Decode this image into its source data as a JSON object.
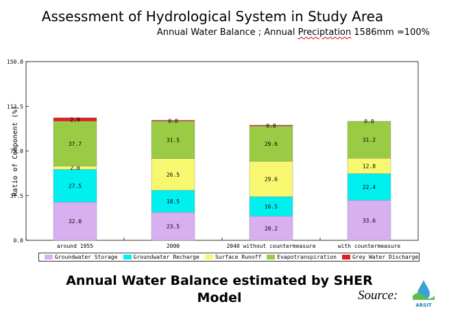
{
  "header": {
    "title": "Assessment of Hydrological System in Study Area",
    "subtitle_prefix": "Annual Water Balance ; Annual ",
    "subtitle_underlined": "Preciptation",
    "subtitle_suffix": " 1586mm =100%"
  },
  "chart_data": {
    "type": "bar",
    "stacked": true,
    "ylabel": "Ratio of Component (%)",
    "xlabel": "",
    "ylim": [
      0,
      150
    ],
    "yticks": [
      "0.0",
      "37.5",
      "75.0",
      "112.5",
      "150.0"
    ],
    "ytick_values": [
      0,
      37.5,
      75,
      112.5,
      150
    ],
    "categories": [
      "around 1955",
      "2000",
      "2040 without countermeasure",
      "with countermeasure"
    ],
    "series": [
      {
        "name": "Groundwater Storage",
        "color": "#d8b0f0",
        "values": [
          32.0,
          23.5,
          20.2,
          33.6
        ],
        "labels": [
          "32.0",
          "23.5",
          "20.2",
          "33.6"
        ]
      },
      {
        "name": "Groundwater Recharge",
        "color": "#00f0f0",
        "values": [
          27.5,
          18.5,
          16.5,
          22.4
        ],
        "labels": [
          "27.5",
          "18.5",
          "16.5",
          "22.4"
        ]
      },
      {
        "name": "Surface Runoff",
        "color": "#f8f870",
        "values": [
          2.8,
          26.5,
          29.6,
          12.8
        ],
        "labels": [
          "2.8",
          "26.5",
          "29.6",
          "12.8"
        ]
      },
      {
        "name": "Evapotranspiration",
        "color": "#99cc44",
        "values": [
          37.7,
          31.5,
          29.6,
          31.2
        ],
        "labels": [
          "37.7",
          "31.5",
          "29.6",
          "31.2"
        ]
      },
      {
        "name": "Grey Water Discharge",
        "color": "#e02020",
        "values": [
          2.9,
          0.8,
          0.8,
          0.0
        ],
        "labels": [
          "2.9",
          "0.8",
          "0.8",
          "0.0"
        ]
      }
    ],
    "legend_position": "bottom"
  },
  "caption": {
    "line1": "Annual Water Balance estimated by SHER",
    "line2": "Model"
  },
  "source_label": "Source:",
  "logo_text": "ARSIT"
}
